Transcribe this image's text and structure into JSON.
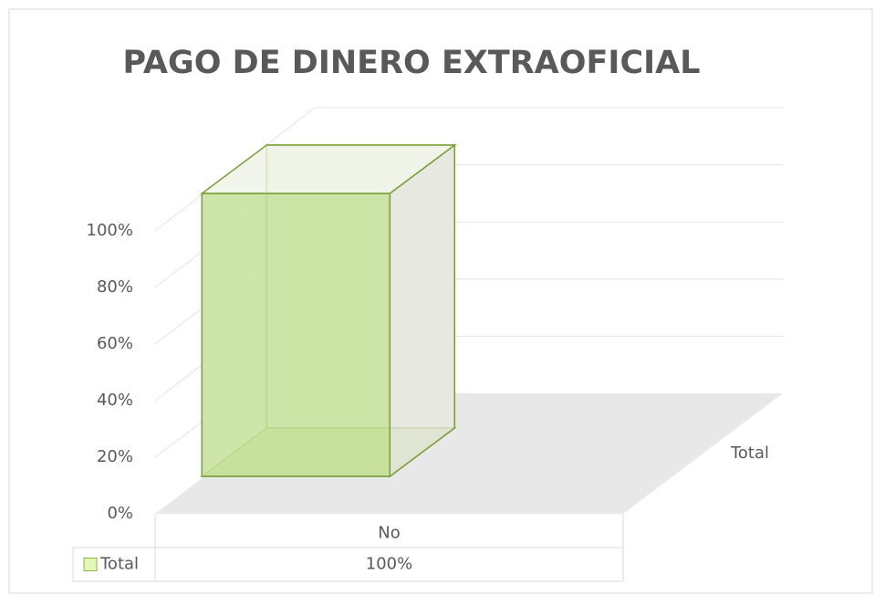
{
  "chart_data": {
    "type": "bar3d",
    "title": "PAGO DE DINERO EXTRAOFICIAL",
    "categories": [
      "No"
    ],
    "series": [
      {
        "name": "Total",
        "color": "#c6e09a",
        "values": [
          100
        ],
        "value_labels": [
          "100%"
        ]
      }
    ],
    "ylim": [
      0,
      100
    ],
    "yticks": [
      {
        "value": 0,
        "label": "0%"
      },
      {
        "value": 20,
        "label": "20%"
      },
      {
        "value": 40,
        "label": "40%"
      },
      {
        "value": 60,
        "label": "60%"
      },
      {
        "value": 80,
        "label": "80%"
      },
      {
        "value": 100,
        "label": "100%"
      }
    ],
    "grid": true,
    "data_table": true
  }
}
